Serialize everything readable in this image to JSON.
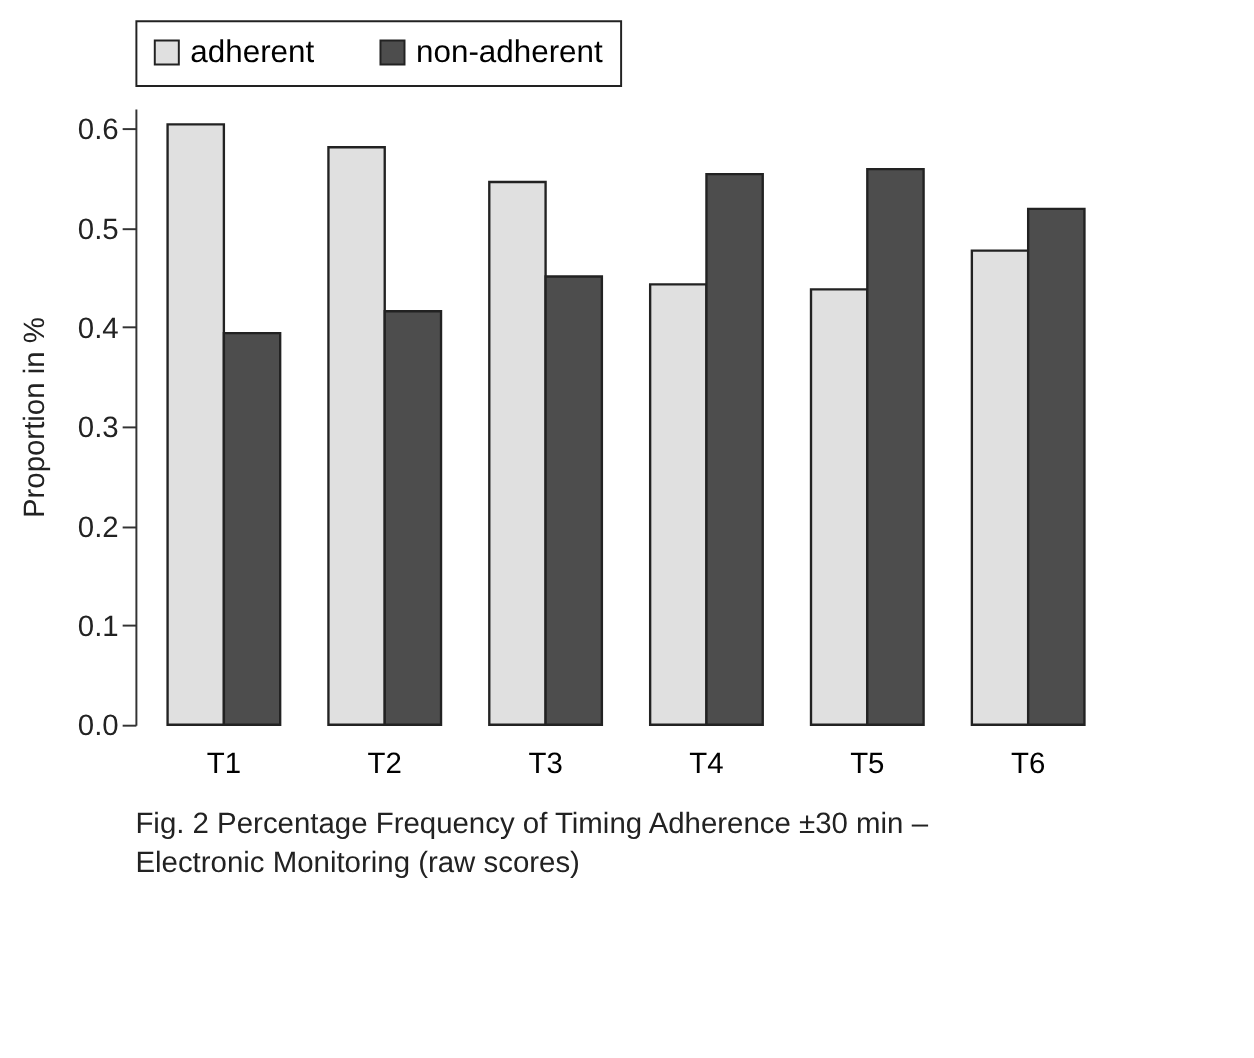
{
  "chart_data": {
    "type": "bar",
    "ylabel": "Proportion in %",
    "categories": [
      "T1",
      "T2",
      "T3",
      "T4",
      "T5",
      "T6"
    ],
    "series": [
      {
        "name": "adherent",
        "color": "#e0e0e0",
        "values": [
          0.604,
          0.581,
          0.546,
          0.443,
          0.438,
          0.477
        ]
      },
      {
        "name": "non-adherent",
        "color": "#4d4d4d",
        "values": [
          0.394,
          0.416,
          0.451,
          0.554,
          0.559,
          0.519
        ]
      }
    ],
    "ylim": [
      0,
      0.62
    ],
    "yticks": [
      {
        "value": 0,
        "label": "0.0"
      },
      0.1,
      0.2,
      0.3,
      0.4,
      0.5,
      0.6
    ],
    "grid": false,
    "legend": "top",
    "annotations": [
      "Fig. 2 Percentage Frequency of Timing Adherence ±30 min – Electronic Monitoring (raw scores)"
    ]
  }
}
